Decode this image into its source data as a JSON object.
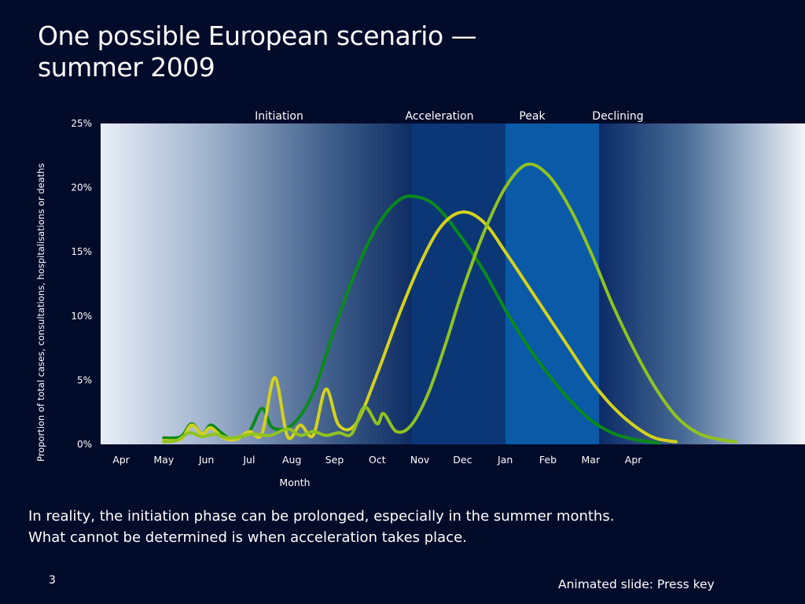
{
  "slide": {
    "title": "One possible European scenario — summer 2009",
    "body_line1": "In reality, the initiation phase can be prolonged, especially in the summer months.",
    "body_line2": "What cannot be determined is when acceleration takes place.",
    "page_number": "3",
    "footnote": "Animated slide: Press key"
  },
  "chart_data": {
    "type": "line",
    "title": "",
    "xlabel": "Month",
    "ylabel": "Proportion of total cases, consultations, hospitalisations or deaths",
    "categories": [
      "Apr",
      "May",
      "Jun",
      "Jul",
      "Aug",
      "Sep",
      "Oct",
      "Nov",
      "Dec",
      "Jan",
      "Feb",
      "Mar",
      "Apr"
    ],
    "ylim": [
      0,
      25
    ],
    "yticks": [
      "0%",
      "5%",
      "10%",
      "15%",
      "20%",
      "25%"
    ],
    "phases": [
      {
        "label": "Initiation",
        "start_month_index": 0,
        "end_month_index": 6.8
      },
      {
        "label": "Acceleration",
        "start_month_index": 6.8,
        "end_month_index": 9
      },
      {
        "label": "Peak",
        "start_month_index": 9,
        "end_month_index": 11.2
      },
      {
        "label": "Declining",
        "start_month_index": 11.2,
        "end_month_index": 13.6
      }
    ],
    "series": [
      {
        "color": "#0a8a1a",
        "points": [
          [
            1,
            0.5
          ],
          [
            1.4,
            0.6
          ],
          [
            1.65,
            1.6
          ],
          [
            1.9,
            0.8
          ],
          [
            2.1,
            1.5
          ],
          [
            2.35,
            0.9
          ],
          [
            2.6,
            0.4
          ],
          [
            3.0,
            1.0
          ],
          [
            3.3,
            2.8
          ],
          [
            3.55,
            1.3
          ],
          [
            4.0,
            1.5
          ],
          [
            4.5,
            4.0
          ],
          [
            5.0,
            9.0
          ],
          [
            5.5,
            13.5
          ],
          [
            6.0,
            17.0
          ],
          [
            6.5,
            19.0
          ],
          [
            6.9,
            19.3
          ],
          [
            7.4,
            18.5
          ],
          [
            8.0,
            16.0
          ],
          [
            8.5,
            13.5
          ],
          [
            9.0,
            10.5
          ],
          [
            9.5,
            7.8
          ],
          [
            10.0,
            5.5
          ],
          [
            10.5,
            3.5
          ],
          [
            11.0,
            1.9
          ],
          [
            11.5,
            0.9
          ],
          [
            12.0,
            0.4
          ],
          [
            12.6,
            0.1
          ]
        ]
      },
      {
        "color": "#d4d21c",
        "points": [
          [
            1,
            0.3
          ],
          [
            1.4,
            0.4
          ],
          [
            1.65,
            1.5
          ],
          [
            1.9,
            0.8
          ],
          [
            2.1,
            1.3
          ],
          [
            2.4,
            0.5
          ],
          [
            2.7,
            0.4
          ],
          [
            3.0,
            1.0
          ],
          [
            3.3,
            0.8
          ],
          [
            3.6,
            5.2
          ],
          [
            3.9,
            0.6
          ],
          [
            4.2,
            1.5
          ],
          [
            4.5,
            0.7
          ],
          [
            4.8,
            4.3
          ],
          [
            5.1,
            1.5
          ],
          [
            5.5,
            1.6
          ],
          [
            6.0,
            5.5
          ],
          [
            6.5,
            10.0
          ],
          [
            7.0,
            14.0
          ],
          [
            7.5,
            17.0
          ],
          [
            8.0,
            18.1
          ],
          [
            8.5,
            17.3
          ],
          [
            9.0,
            15.0
          ],
          [
            9.5,
            12.5
          ],
          [
            10.0,
            10.0
          ],
          [
            10.5,
            7.5
          ],
          [
            11.0,
            5.0
          ],
          [
            11.5,
            3.0
          ],
          [
            12.0,
            1.5
          ],
          [
            12.5,
            0.5
          ],
          [
            13.0,
            0.2
          ]
        ]
      },
      {
        "color": "#8fc31f",
        "points": [
          [
            1,
            0.2
          ],
          [
            1.3,
            0.3
          ],
          [
            1.6,
            0.9
          ],
          [
            1.9,
            0.6
          ],
          [
            2.2,
            0.8
          ],
          [
            2.5,
            0.5
          ],
          [
            2.8,
            0.6
          ],
          [
            3.1,
            0.8
          ],
          [
            3.5,
            0.7
          ],
          [
            3.9,
            1.2
          ],
          [
            4.2,
            0.7
          ],
          [
            4.5,
            1.0
          ],
          [
            4.8,
            0.7
          ],
          [
            5.1,
            0.9
          ],
          [
            5.4,
            0.8
          ],
          [
            5.7,
            2.9
          ],
          [
            6.0,
            1.6
          ],
          [
            6.15,
            2.4
          ],
          [
            6.45,
            1.0
          ],
          [
            6.8,
            1.5
          ],
          [
            7.2,
            4.0
          ],
          [
            7.6,
            7.8
          ],
          [
            8.0,
            12.0
          ],
          [
            8.5,
            16.5
          ],
          [
            9.0,
            20.0
          ],
          [
            9.5,
            21.8
          ],
          [
            10.0,
            21.0
          ],
          [
            10.5,
            18.5
          ],
          [
            11.0,
            15.0
          ],
          [
            11.5,
            11.0
          ],
          [
            12.0,
            7.5
          ],
          [
            12.5,
            4.5
          ],
          [
            13.0,
            2.2
          ],
          [
            13.5,
            0.9
          ],
          [
            14.0,
            0.4
          ],
          [
            14.4,
            0.2
          ]
        ]
      }
    ]
  }
}
